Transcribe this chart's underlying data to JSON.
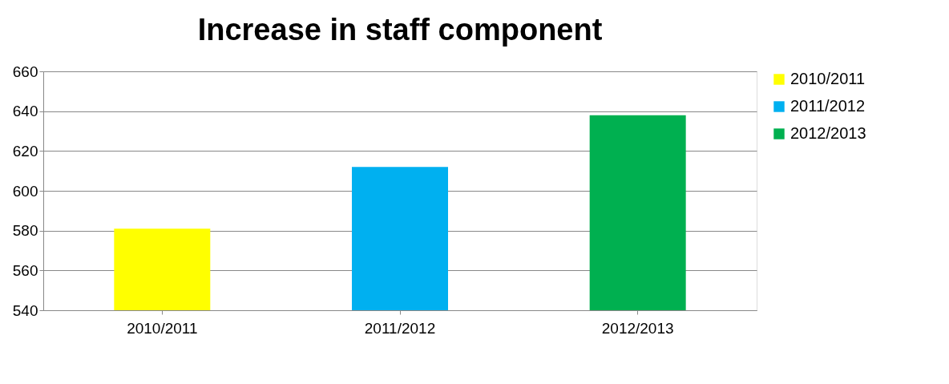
{
  "chart_data": {
    "type": "bar",
    "title": "Increase in staff component",
    "categories": [
      "2010/2011",
      "2011/2012",
      "2012/2013"
    ],
    "series": [
      {
        "name": "2010/2011",
        "color": "#ffff00",
        "values": [
          581,
          null,
          null
        ]
      },
      {
        "name": "2011/2012",
        "color": "#00b0f0",
        "values": [
          null,
          612,
          null
        ]
      },
      {
        "name": "2012/2013",
        "color": "#00b050",
        "values": [
          null,
          null,
          638
        ]
      }
    ],
    "ylim": [
      540,
      660
    ],
    "yticks": [
      540,
      560,
      580,
      600,
      620,
      640,
      660
    ],
    "grid": "y",
    "legend": "right"
  }
}
